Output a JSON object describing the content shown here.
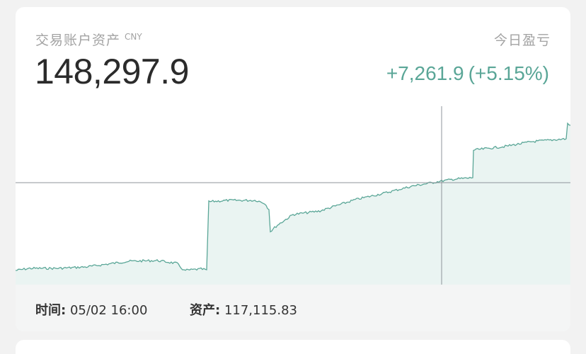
{
  "account": {
    "label": "交易账户资产",
    "currency": "CNY",
    "total": "148,297.9"
  },
  "pnl": {
    "label": "今日盈亏",
    "amount": "+7,261.9",
    "percent": "(+5.15%)"
  },
  "tooltip": {
    "time_label": "时间:",
    "time_value": "05/02 16:00",
    "asset_label": "资产:",
    "asset_value": "117,115.83"
  },
  "colors": {
    "positive": "#5aa697",
    "line": "#5aa697",
    "fill": "#eaf4f2",
    "crosshair": "#8f959b"
  }
}
